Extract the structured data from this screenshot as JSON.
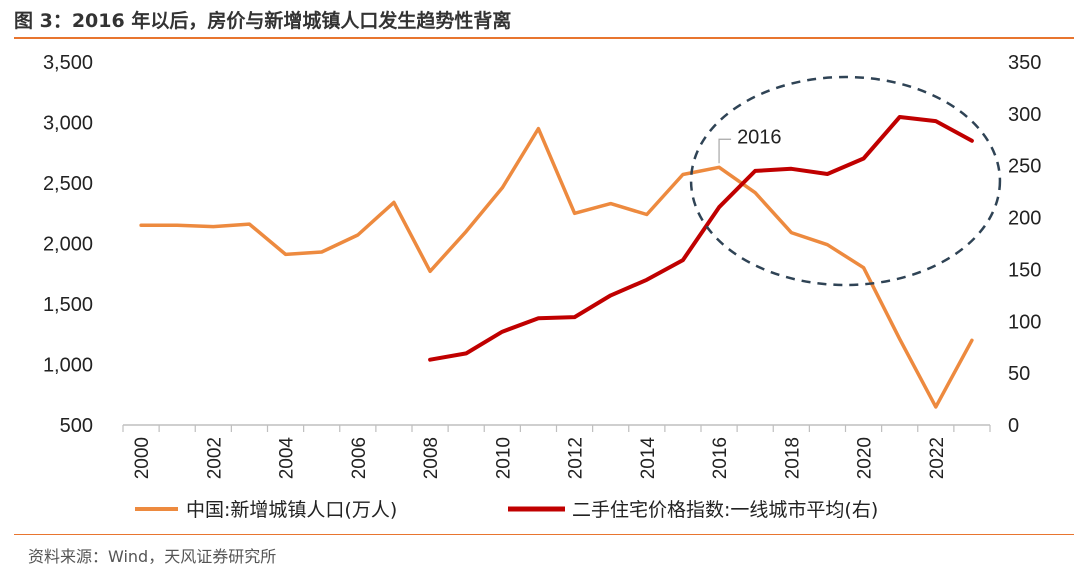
{
  "header": {
    "title": "图 3：2016 年以后，房价与新增城镇人口发生趋势性背离"
  },
  "footer": {
    "source": "资料来源：Wind，天风证券研究所"
  },
  "chart_data": {
    "type": "line",
    "x": [
      2000,
      2001,
      2002,
      2003,
      2004,
      2005,
      2006,
      2007,
      2008,
      2009,
      2010,
      2011,
      2012,
      2013,
      2014,
      2015,
      2016,
      2017,
      2018,
      2019,
      2020,
      2021,
      2022,
      2023
    ],
    "x_tick_labels": [
      "2000",
      "2002",
      "2004",
      "2006",
      "2008",
      "2010",
      "2012",
      "2014",
      "2016",
      "2018",
      "2020",
      "2022"
    ],
    "y_left": {
      "range": [
        500,
        3500
      ],
      "tick_labels": [
        "3,500",
        "3,000",
        "2,500",
        "2,000",
        "1,500",
        "1,000",
        "500"
      ]
    },
    "y_right": {
      "range": [
        0,
        350
      ],
      "tick_labels": [
        "350",
        "300",
        "250",
        "200",
        "150",
        "100",
        "50",
        "0"
      ]
    },
    "grid": false,
    "legend_position": "bottom",
    "series": [
      {
        "name": "中国:新增城镇人口(万人)",
        "axis": "left",
        "color": "#ed8a3f",
        "values": [
          2150,
          2150,
          2140,
          2160,
          1910,
          1930,
          2070,
          2340,
          1770,
          2100,
          2460,
          2950,
          2250,
          2330,
          2240,
          2570,
          2630,
          2420,
          2090,
          1990,
          1800,
          1210,
          650,
          1200
        ]
      },
      {
        "name": "二手住宅价格指数:一线城市平均(右)",
        "axis": "right",
        "color": "#c00000",
        "values": [
          null,
          null,
          null,
          null,
          null,
          null,
          null,
          null,
          63,
          69,
          90,
          103,
          104,
          125,
          140,
          159,
          210,
          245,
          247,
          242,
          257,
          297,
          293,
          274
        ]
      }
    ],
    "annotations": [
      {
        "text": "2016",
        "points_to_x": 2016,
        "series": "中国:新增城镇人口(万人)"
      }
    ],
    "highlight": {
      "shape": "dashed-ellipse",
      "x_range": [
        2016,
        2023
      ]
    }
  }
}
